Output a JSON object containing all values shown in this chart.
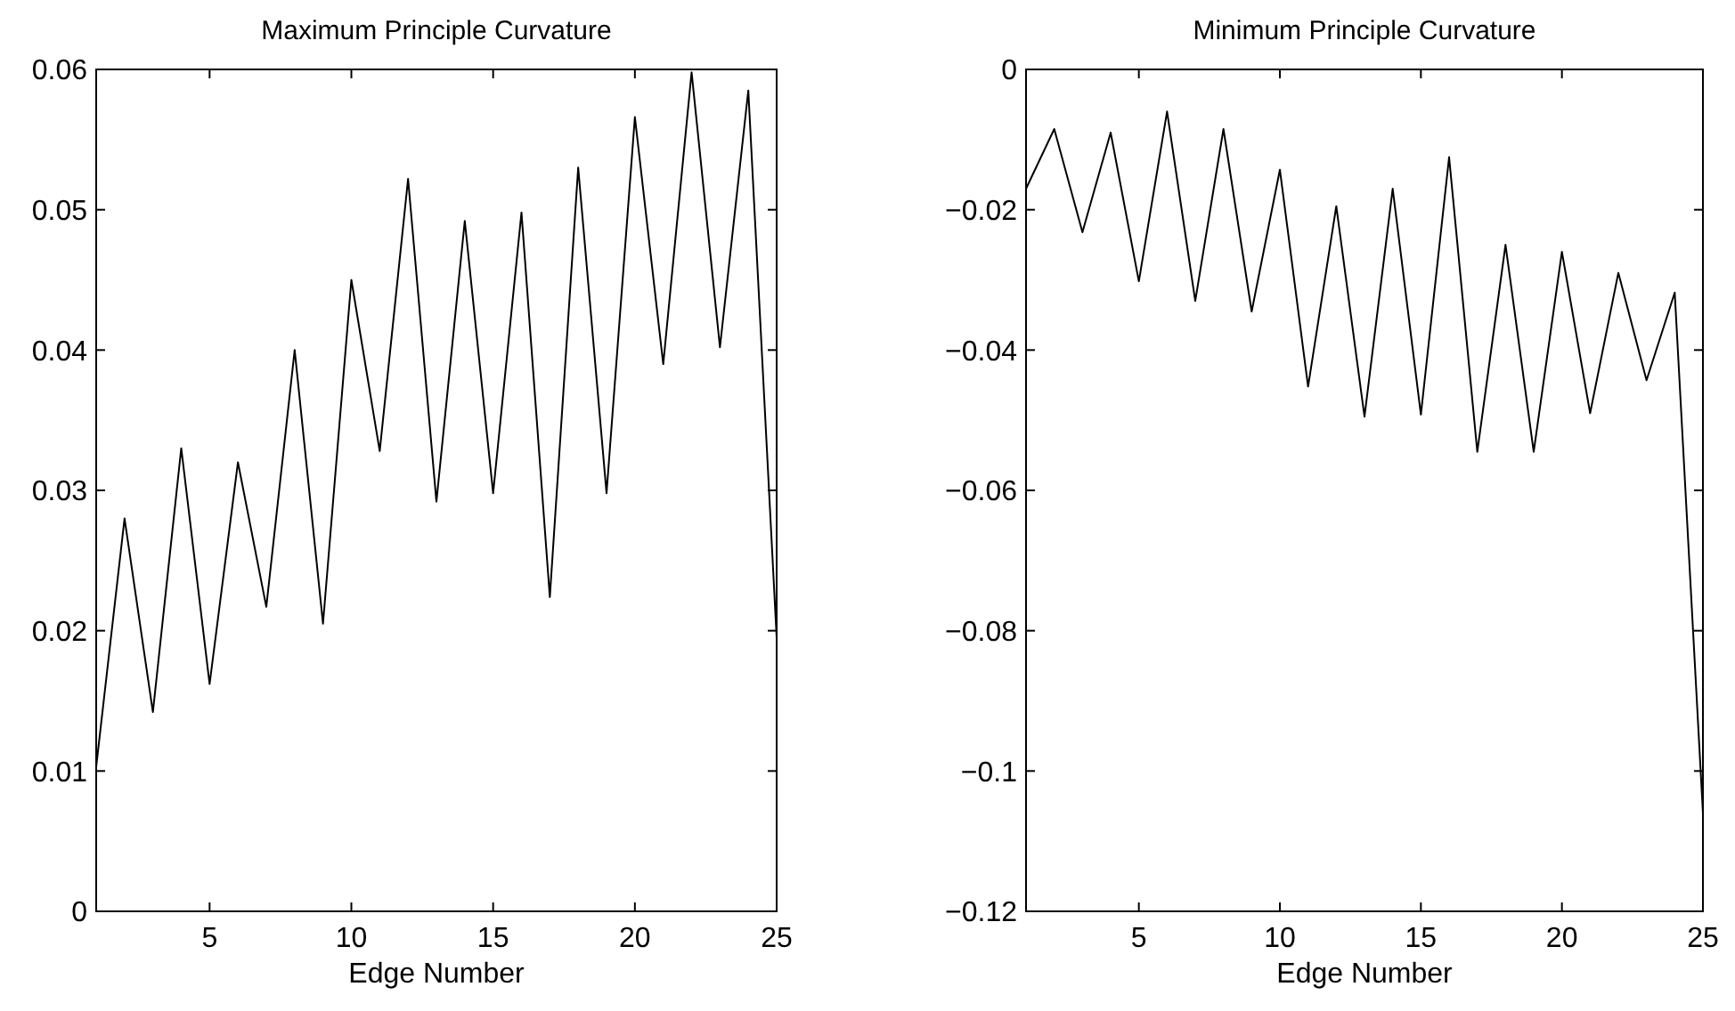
{
  "chart_data": [
    {
      "type": "line",
      "title": "Maximum Principle Curvature",
      "xlabel": "Edge Number",
      "x": [
        1,
        2,
        3,
        4,
        5,
        6,
        7,
        8,
        9,
        10,
        11,
        12,
        13,
        14,
        15,
        16,
        17,
        18,
        19,
        20,
        21,
        22,
        23,
        24,
        25
      ],
      "series": [
        {
          "color": "#000000",
          "values": [
            0.0103,
            0.028,
            0.0142,
            0.033,
            0.0162,
            0.032,
            0.0217,
            0.04,
            0.0205,
            0.045,
            0.0328,
            0.0522,
            0.0292,
            0.0492,
            0.0298,
            0.0498,
            0.0224,
            0.053,
            0.0298,
            0.0566,
            0.039,
            0.0598,
            0.0402,
            0.0585,
            0.0195
          ]
        }
      ],
      "xlim": [
        1,
        25
      ],
      "xticks": [
        5,
        10,
        15,
        20,
        25
      ],
      "ylim": [
        0,
        0.06
      ],
      "yticks": [
        0,
        0.01,
        0.02,
        0.03,
        0.04,
        0.05,
        0.06
      ],
      "grid": false,
      "marker": "none",
      "line_style": "solid"
    },
    {
      "type": "line",
      "title": "Minimum Principle Curvature",
      "xlabel": "Edge Number",
      "x": [
        1,
        2,
        3,
        4,
        5,
        6,
        7,
        8,
        9,
        10,
        11,
        12,
        13,
        14,
        15,
        16,
        17,
        18,
        19,
        20,
        21,
        22,
        23,
        24,
        25
      ],
      "series": [
        {
          "color": "#000000",
          "values": [
            -0.017,
            -0.0085,
            -0.0232,
            -0.009,
            -0.0302,
            -0.006,
            -0.033,
            -0.0085,
            -0.0345,
            -0.0143,
            -0.0452,
            -0.0195,
            -0.0495,
            -0.017,
            -0.0492,
            -0.0125,
            -0.0545,
            -0.025,
            -0.0545,
            -0.026,
            -0.049,
            -0.029,
            -0.0443,
            -0.0318,
            -0.106
          ]
        }
      ],
      "xlim": [
        1,
        25
      ],
      "xticks": [
        5,
        10,
        15,
        20,
        25
      ],
      "ylim": [
        -0.12,
        0
      ],
      "yticks": [
        {
          "value": -0.12,
          "label": "−0.12"
        },
        {
          "value": -0.1,
          "label": "−0.1"
        },
        {
          "value": -0.08,
          "label": "−0.08"
        },
        {
          "value": -0.06,
          "label": "−0.06"
        },
        {
          "value": -0.04,
          "label": "−0.04"
        },
        {
          "value": -0.02,
          "label": "−0.02"
        },
        0
      ],
      "grid": false,
      "marker": "none",
      "line_style": "solid"
    }
  ]
}
